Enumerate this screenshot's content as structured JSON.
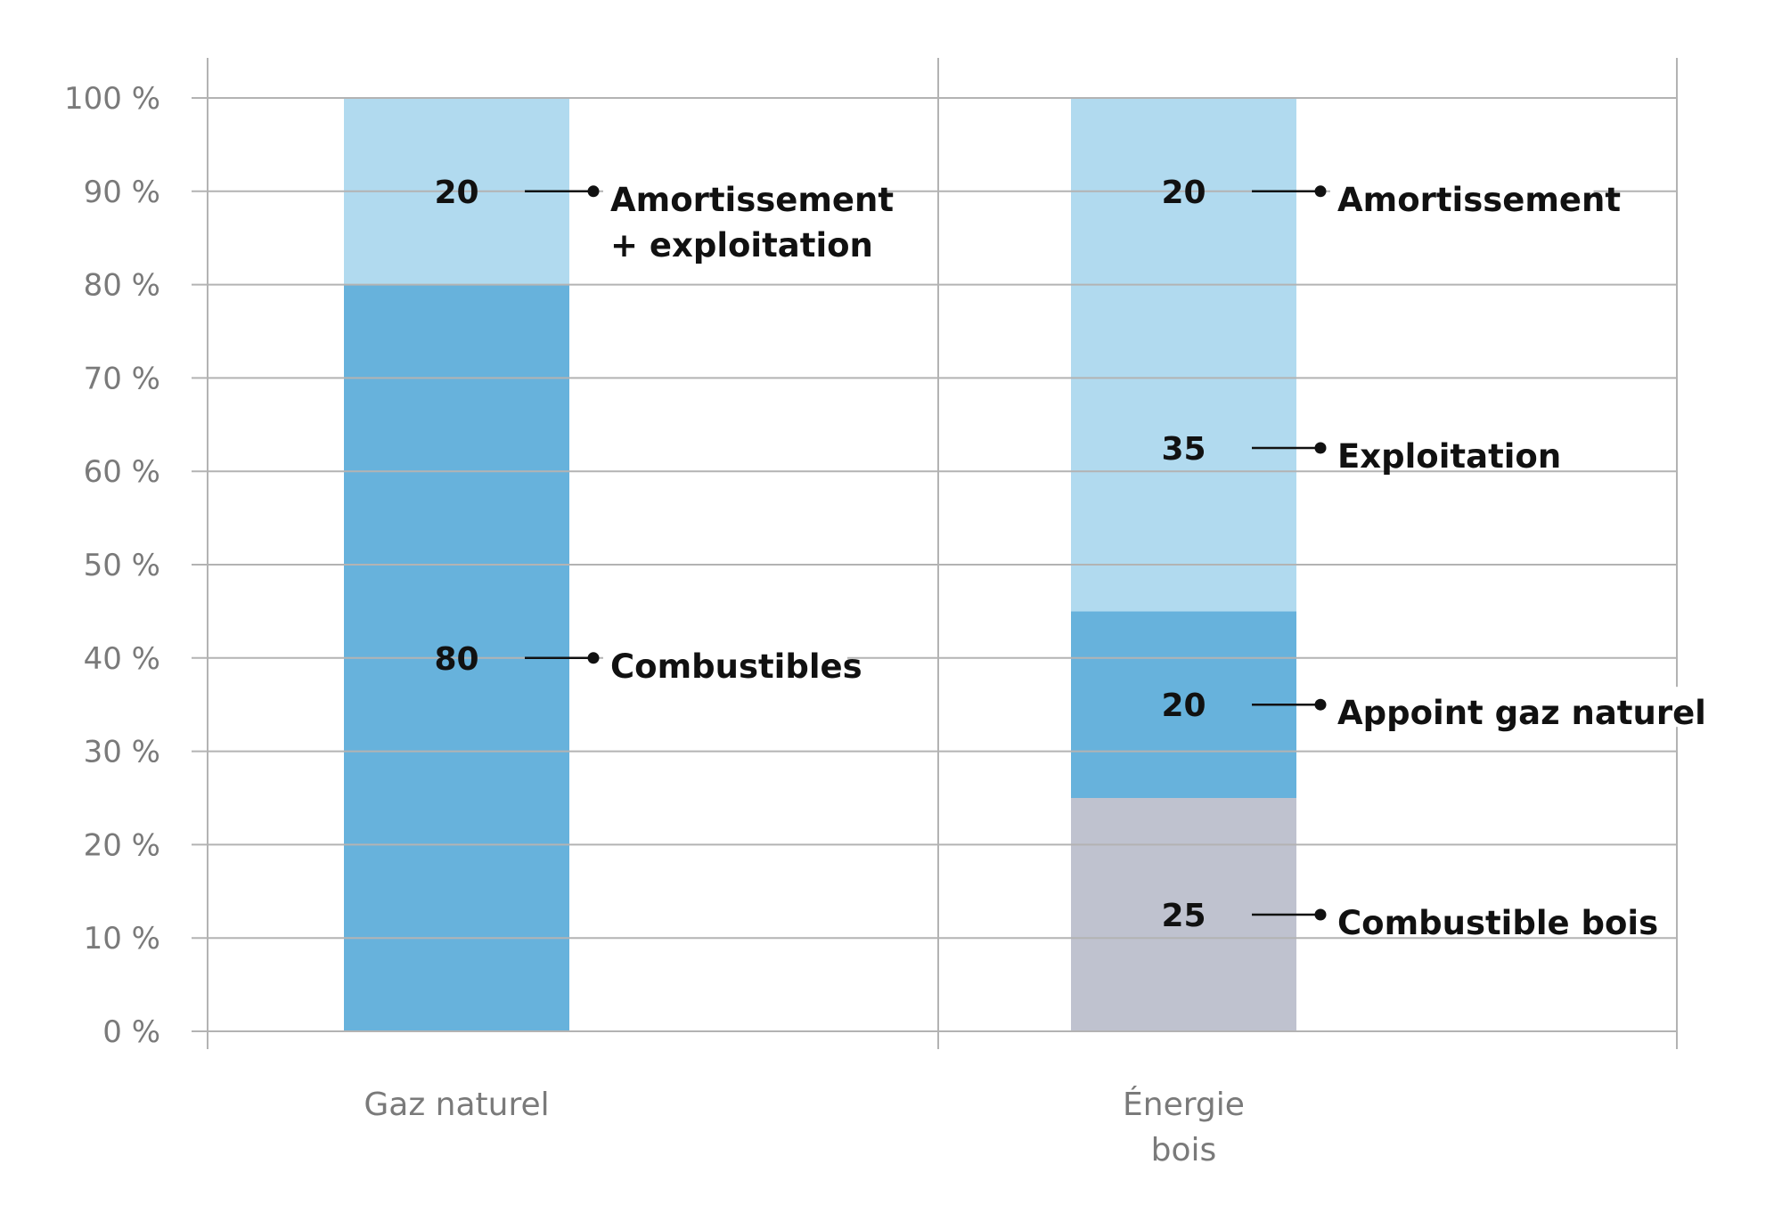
{
  "chart_data": {
    "type": "bar",
    "stacked": true,
    "ylim": [
      0,
      100
    ],
    "yticks": [
      "0 %",
      "10 %",
      "20 %",
      "30 %",
      "40 %",
      "50 %",
      "60 %",
      "70 %",
      "80 %",
      "90 %",
      "100 %"
    ],
    "grid": true,
    "legend": "inline-right-of-bars",
    "categories": [
      {
        "name": "Gaz naturel",
        "segments": [
          {
            "label": "Combustibles",
            "value": 80,
            "display": "80",
            "color": "#67b2dc"
          },
          {
            "label": "Amortissement\n+ exploitation",
            "label_lines": [
              "Amortissement",
              "+ exploitation"
            ],
            "value": 20,
            "display": "20",
            "color": "#b1daef"
          }
        ]
      },
      {
        "name": "Énergie bois",
        "name_lines": [
          "Énergie",
          "bois"
        ],
        "segments": [
          {
            "label": "Combustible bois",
            "value": 25,
            "display": "25",
            "color": "#bfc2cf"
          },
          {
            "label": "Appoint gaz naturel",
            "value": 20,
            "display": "20",
            "color": "#67b2dc"
          },
          {
            "label": "Exploitation",
            "value": 35,
            "display": "35",
            "color": "#b1daef"
          },
          {
            "label": "Amortissement",
            "value": 20,
            "display": "20",
            "color": "#b1daef"
          }
        ]
      }
    ],
    "colors": {
      "fuel_blue": "#67b2dc",
      "light_blue": "#b1daef",
      "wood_grey": "#bfc2cf",
      "grid": "#b3b3b3",
      "axis_text": "#7a7a7a",
      "annotation_text": "#111111"
    }
  }
}
